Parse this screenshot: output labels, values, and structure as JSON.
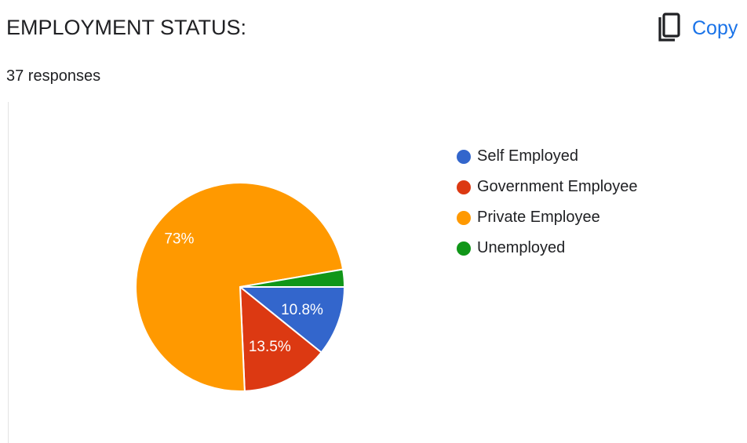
{
  "header": {
    "title": "EMPLOYMENT STATUS:",
    "responses": "37 responses",
    "copy_label": "Copy",
    "copy_icon": "copy-icon"
  },
  "chart_data": {
    "type": "pie",
    "slices": [
      {
        "label": "Self Employed",
        "value": 10.8,
        "color": "#3366cc",
        "data_label": "10.8%"
      },
      {
        "label": "Government Employee",
        "value": 13.5,
        "color": "#dc3912",
        "data_label": "13.5%"
      },
      {
        "label": "Private Employee",
        "value": 73.0,
        "color": "#ff9900",
        "data_label": "73%"
      },
      {
        "label": "Unemployed",
        "value": 2.7,
        "color": "#109618",
        "data_label": ""
      }
    ],
    "start_angle_deg": 90,
    "direction": "clockwise",
    "legend_position": "right"
  }
}
